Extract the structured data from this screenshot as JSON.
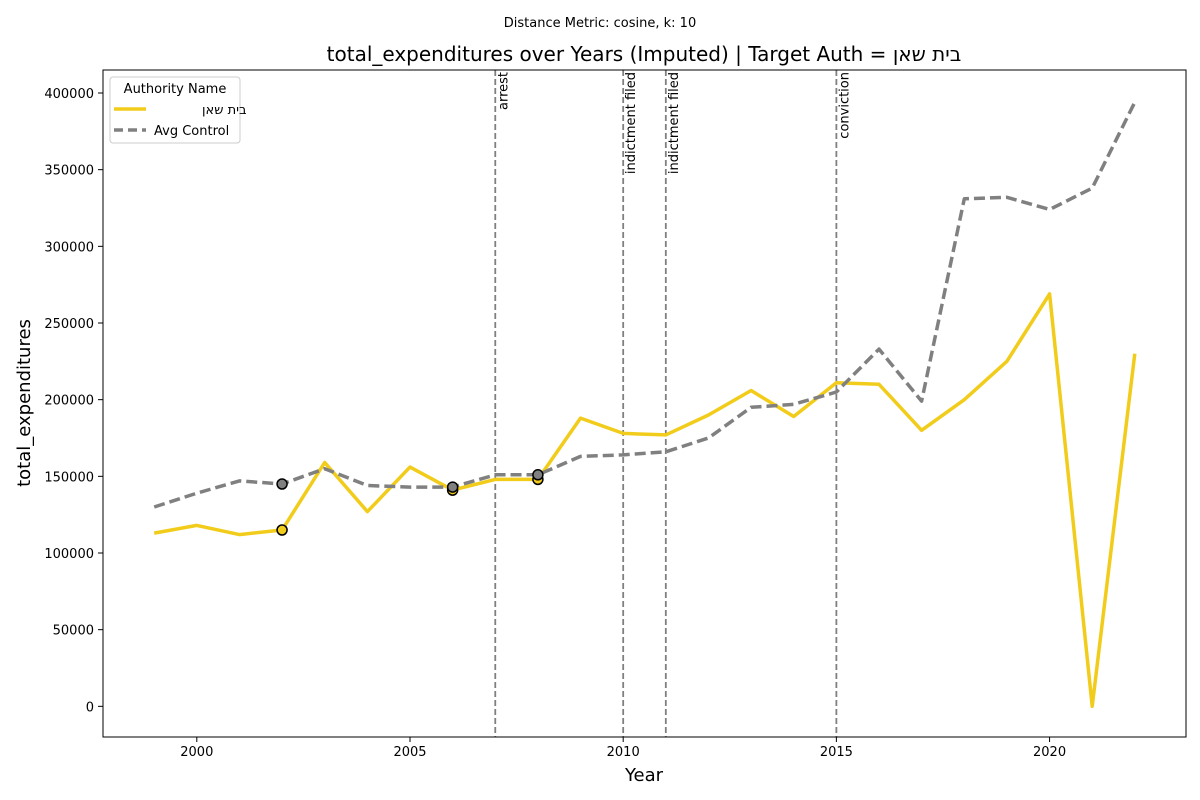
{
  "suptitle": "Distance Metric: cosine, k: 10",
  "chart_data": {
    "type": "line",
    "title": "total_expenditures over Years (Imputed) | Target Auth = בית שאן",
    "xlabel": "Year",
    "ylabel": "total_expenditures",
    "xlim": [
      1997.8,
      2023.2
    ],
    "ylim": [
      -20000,
      415000
    ],
    "xticks": [
      2000,
      2005,
      2010,
      2015,
      2020
    ],
    "yticks": [
      0,
      50000,
      100000,
      150000,
      200000,
      250000,
      300000,
      350000,
      400000
    ],
    "grid": false,
    "legend": {
      "title": "Authority Name",
      "placement": "top-left"
    },
    "x": [
      1999,
      2000,
      2001,
      2002,
      2003,
      2004,
      2005,
      2006,
      2007,
      2008,
      2009,
      2010,
      2011,
      2012,
      2013,
      2014,
      2015,
      2016,
      2017,
      2018,
      2019,
      2020,
      2021,
      2022
    ],
    "series": [
      {
        "name": "בית שאן",
        "color": "#f2cc1a",
        "style": "solid",
        "values": [
          113000,
          118000,
          112000,
          115000,
          159000,
          127000,
          156000,
          141000,
          148000,
          148000,
          188000,
          178000,
          177000,
          190000,
          206000,
          189000,
          211000,
          210000,
          180000,
          200000,
          225000,
          269000,
          0,
          230000
        ],
        "imputed_years": [
          2002,
          2006,
          2008
        ]
      },
      {
        "name": "Avg Control",
        "color": "#808080",
        "style": "dashed",
        "values": [
          130000,
          139000,
          147000,
          145000,
          155000,
          144000,
          143000,
          143000,
          151000,
          151000,
          163000,
          164000,
          166000,
          175000,
          195000,
          197000,
          205000,
          233000,
          199000,
          331000,
          332000,
          324000,
          338000,
          394000
        ],
        "imputed_years": [
          2002,
          2006,
          2008
        ]
      }
    ],
    "events": [
      {
        "year": 2007,
        "label": "arrest"
      },
      {
        "year": 2010,
        "label": "indictment filed"
      },
      {
        "year": 2011,
        "label": "indictment filed"
      },
      {
        "year": 2015,
        "label": "conviction"
      }
    ]
  }
}
